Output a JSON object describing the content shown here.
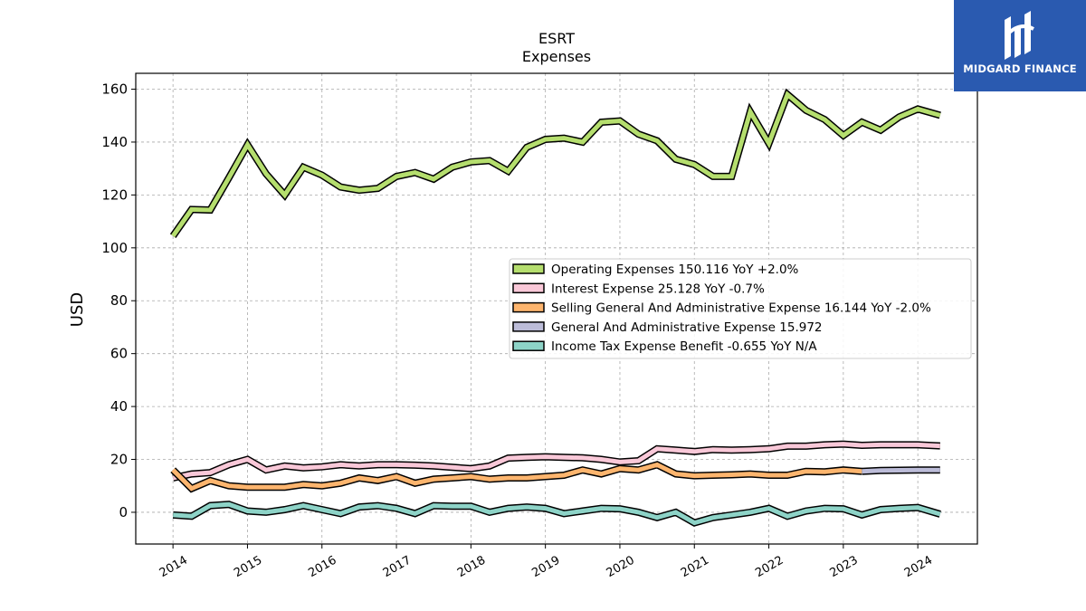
{
  "brand": {
    "name": "MIDGARD FINANCE",
    "color": "#2a5ab0",
    "icon": "midgard-logo-icon"
  },
  "chart_data": {
    "type": "line",
    "title": "ESRT",
    "subtitle": "Expenses",
    "ylabel": "USD",
    "xlabel": "",
    "ylim": [
      -12,
      166
    ],
    "xlim": [
      2013.5,
      2024.8
    ],
    "yticks": [
      0,
      20,
      40,
      60,
      80,
      100,
      120,
      140,
      160
    ],
    "xticks": [
      "2014",
      "2015",
      "2016",
      "2017",
      "2018",
      "2019",
      "2020",
      "2021",
      "2022",
      "2023",
      "2024"
    ],
    "grid": true,
    "legend_position": "center-right",
    "series": [
      {
        "name": "Operating Expenses",
        "legend": "Operating Expenses  150.116 YoY +2.0%",
        "color": "#b5de6e",
        "x": [
          2014.0,
          2014.25,
          2014.5,
          2014.75,
          2015.0,
          2015.25,
          2015.5,
          2015.75,
          2016.0,
          2016.25,
          2016.5,
          2016.75,
          2017.0,
          2017.25,
          2017.5,
          2017.75,
          2018.0,
          2018.25,
          2018.5,
          2018.75,
          2019.0,
          2019.25,
          2019.5,
          2019.75,
          2020.0,
          2020.25,
          2020.5,
          2020.75,
          2021.0,
          2021.25,
          2021.5,
          2021.75,
          2022.0,
          2022.25,
          2022.5,
          2022.75,
          2023.0,
          2023.25,
          2023.5,
          2023.75,
          2024.0,
          2024.3
        ],
        "values": [
          104.5,
          114.5,
          114.3,
          126.5,
          139.0,
          128.0,
          120.0,
          130.5,
          127.5,
          123.0,
          121.8,
          122.5,
          127.0,
          128.5,
          126.0,
          130.5,
          132.5,
          133.0,
          129.0,
          138.0,
          141.0,
          141.5,
          140.0,
          147.5,
          148.0,
          143.0,
          140.5,
          133.5,
          131.5,
          127.0,
          127.0,
          151.5,
          139.5,
          158.0,
          152.0,
          148.5,
          142.5,
          147.5,
          144.5,
          149.5,
          152.5,
          150.1
        ]
      },
      {
        "name": "Interest Expense",
        "legend": "Interest Expense  25.128 YoY -0.7%",
        "color": "#f9c8d8",
        "x": [
          2014.0,
          2014.25,
          2014.5,
          2014.75,
          2015.0,
          2015.25,
          2015.5,
          2015.75,
          2016.0,
          2016.25,
          2016.5,
          2016.75,
          2017.0,
          2017.25,
          2017.5,
          2017.75,
          2018.0,
          2018.25,
          2018.5,
          2018.75,
          2019.0,
          2019.25,
          2019.5,
          2019.75,
          2020.0,
          2020.25,
          2020.5,
          2020.75,
          2021.0,
          2021.25,
          2021.5,
          2021.75,
          2022.0,
          2022.25,
          2022.5,
          2022.75,
          2023.0,
          2023.25,
          2023.5,
          2023.75,
          2024.0,
          2024.3
        ],
        "values": [
          13.0,
          14.5,
          15.0,
          18.0,
          20.0,
          16.0,
          17.5,
          16.8,
          17.2,
          18.0,
          17.5,
          18.0,
          18.0,
          17.8,
          17.5,
          17.0,
          16.5,
          17.5,
          20.5,
          20.8,
          21.0,
          20.8,
          20.6,
          20.0,
          19.0,
          19.5,
          24.0,
          23.5,
          23.0,
          23.7,
          23.5,
          23.7,
          24.0,
          25.0,
          25.0,
          25.5,
          25.8,
          25.3,
          25.5,
          25.5,
          25.5,
          25.1
        ]
      },
      {
        "name": "Selling General And Administrative Expense",
        "legend": "Selling General And Administrative Expense  16.144 YoY -2.0%",
        "color": "#fdb56e",
        "x": [
          2014.0,
          2014.25,
          2014.5,
          2014.75,
          2015.0,
          2015.25,
          2015.5,
          2015.75,
          2016.0,
          2016.25,
          2016.5,
          2016.75,
          2017.0,
          2017.25,
          2017.5,
          2017.75,
          2018.0,
          2018.25,
          2018.5,
          2018.75,
          2019.0,
          2019.25,
          2019.5,
          2019.75,
          2020.0,
          2020.25,
          2020.5,
          2020.75,
          2021.0,
          2021.25,
          2021.5,
          2021.75,
          2022.0,
          2022.25,
          2022.5,
          2022.75,
          2023.0,
          2023.25
        ],
        "values": [
          16.0,
          9.0,
          12.0,
          10.0,
          9.5,
          9.5,
          9.5,
          10.5,
          10.0,
          11.0,
          13.0,
          12.0,
          13.5,
          11.0,
          12.5,
          13.0,
          13.5,
          12.5,
          13.0,
          13.0,
          13.5,
          14.0,
          16.0,
          14.5,
          16.5,
          16.0,
          18.0,
          14.5,
          13.8,
          14.0,
          14.2,
          14.5,
          14.0,
          14.0,
          15.5,
          15.3,
          16.0,
          15.5
        ]
      },
      {
        "name": "General And Administrative Expense",
        "legend": "General And Administrative Expense  15.972",
        "color": "#bcbcd8",
        "x": [
          2023.25,
          2023.5,
          2023.75,
          2024.0,
          2024.3
        ],
        "values": [
          15.5,
          15.8,
          15.9,
          16.0,
          16.0
        ]
      },
      {
        "name": "Income Tax Expense Benefit",
        "legend": "Income Tax Expense Benefit  -0.655 YoY N/A",
        "color": "#8dd3c7",
        "x": [
          2014.0,
          2014.25,
          2014.5,
          2014.75,
          2015.0,
          2015.25,
          2015.5,
          2015.75,
          2016.0,
          2016.25,
          2016.5,
          2016.75,
          2017.0,
          2017.25,
          2017.5,
          2017.75,
          2018.0,
          2018.25,
          2018.5,
          2018.75,
          2019.0,
          2019.25,
          2019.5,
          2019.75,
          2020.0,
          2020.25,
          2020.5,
          2020.75,
          2021.0,
          2021.25,
          2021.5,
          2021.75,
          2022.0,
          2022.25,
          2022.5,
          2022.75,
          2023.0,
          2023.25,
          2023.5,
          2023.75,
          2024.0,
          2024.3
        ],
        "values": [
          -1.0,
          -1.5,
          2.5,
          3.0,
          0.5,
          0.0,
          1.0,
          2.5,
          1.0,
          -0.5,
          2.0,
          2.5,
          1.5,
          -0.5,
          2.5,
          2.3,
          2.3,
          0.0,
          1.5,
          2.0,
          1.5,
          -0.5,
          0.5,
          1.5,
          1.3,
          0.0,
          -2.0,
          0.0,
          -4.0,
          -2.0,
          -1.0,
          0.0,
          1.5,
          -1.5,
          0.5,
          1.5,
          1.3,
          -1.0,
          1.0,
          1.5,
          1.8,
          -0.7
        ]
      }
    ]
  }
}
